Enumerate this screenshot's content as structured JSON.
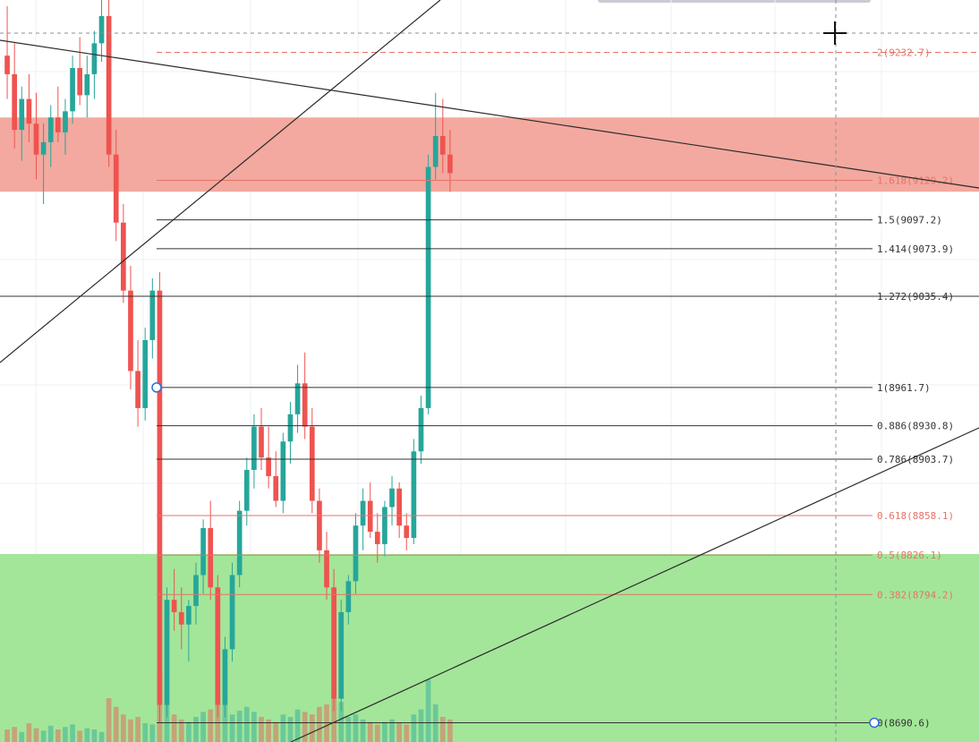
{
  "chart_data": {
    "type": "candlestick",
    "title": "",
    "xlabel": "",
    "ylabel": "",
    "ylim": [
      8675,
      9275
    ],
    "colors": {
      "up": "#26a69a",
      "down": "#ef5350",
      "fib_red": "#e57368",
      "fib_black": "#333333",
      "resistance_zone": "#f2a49a",
      "support_zone": "#9ee594",
      "grid": "#eef0f3",
      "trendline": "#2b2b2b",
      "anchor": "#2f6fd8"
    },
    "zones": [
      {
        "name": "resistance-zone",
        "from": 9120,
        "to": 9180
      },
      {
        "name": "support-zone",
        "from": 8675,
        "to": 8827
      }
    ],
    "fib_levels": [
      {
        "ratio": "2",
        "price": 9232.7,
        "label": "2(9232.7)",
        "color": "red",
        "dashed": true
      },
      {
        "ratio": "1.618",
        "price": 9129.2,
        "label": "1.618(9129.2)",
        "color": "red",
        "dashed": false
      },
      {
        "ratio": "1.5",
        "price": 9097.2,
        "label": "1.5(9097.2)",
        "color": "black",
        "dashed": false
      },
      {
        "ratio": "1.414",
        "price": 9073.9,
        "label": "1.414(9073.9)",
        "color": "black",
        "dashed": false
      },
      {
        "ratio": "1.272",
        "price": 9035.4,
        "label": "1.272(9035.4)",
        "color": "black",
        "dashed": false
      },
      {
        "ratio": "1",
        "price": 8961.7,
        "label": "1(8961.7)",
        "color": "black",
        "dashed": false
      },
      {
        "ratio": "0.886",
        "price": 8930.8,
        "label": "0.886(8930.8)",
        "color": "black",
        "dashed": false
      },
      {
        "ratio": "0.786",
        "price": 8903.7,
        "label": "0.786(8903.7)",
        "color": "black",
        "dashed": false
      },
      {
        "ratio": "0.618",
        "price": 8858.1,
        "label": "0.618(8858.1)",
        "color": "red",
        "dashed": false
      },
      {
        "ratio": "0.5",
        "price": 8826.1,
        "label": "0.5(8826.1)",
        "color": "red",
        "dashed": false
      },
      {
        "ratio": "0.382",
        "price": 8794.2,
        "label": "0.382(8794.2)",
        "color": "red",
        "dashed": false
      },
      {
        "ratio": "0",
        "price": 8690.6,
        "label": "0(8690.6)",
        "color": "black",
        "dashed": false
      }
    ],
    "candles": [
      [
        9230,
        9270,
        9195,
        9215
      ],
      [
        9215,
        9240,
        9155,
        9170
      ],
      [
        9170,
        9205,
        9145,
        9195
      ],
      [
        9195,
        9215,
        9160,
        9175
      ],
      [
        9175,
        9200,
        9130,
        9150
      ],
      [
        9150,
        9175,
        9110,
        9160
      ],
      [
        9160,
        9190,
        9140,
        9180
      ],
      [
        9180,
        9205,
        9160,
        9168
      ],
      [
        9168,
        9195,
        9150,
        9185
      ],
      [
        9185,
        9230,
        9175,
        9220
      ],
      [
        9220,
        9245,
        9190,
        9198
      ],
      [
        9198,
        9230,
        9180,
        9215
      ],
      [
        9215,
        9250,
        9195,
        9240
      ],
      [
        9240,
        9275,
        9225,
        9262
      ],
      [
        9262,
        9275,
        9140,
        9150
      ],
      [
        9150,
        9170,
        9080,
        9095
      ],
      [
        9095,
        9110,
        9030,
        9040
      ],
      [
        9040,
        9060,
        8960,
        8975
      ],
      [
        8975,
        9000,
        8930,
        8945
      ],
      [
        8945,
        9010,
        8935,
        9000
      ],
      [
        9000,
        9050,
        8985,
        9040
      ],
      [
        9040,
        9055,
        8690,
        8705
      ],
      [
        8705,
        8800,
        8695,
        8790
      ],
      [
        8790,
        8815,
        8765,
        8780
      ],
      [
        8780,
        8800,
        8750,
        8770
      ],
      [
        8770,
        8790,
        8740,
        8785
      ],
      [
        8785,
        8820,
        8770,
        8810
      ],
      [
        8810,
        8855,
        8795,
        8848
      ],
      [
        8848,
        8870,
        8790,
        8800
      ],
      [
        8800,
        8810,
        8695,
        8705
      ],
      [
        8705,
        8760,
        8695,
        8750
      ],
      [
        8750,
        8820,
        8740,
        8810
      ],
      [
        8810,
        8870,
        8800,
        8862
      ],
      [
        8862,
        8905,
        8850,
        8895
      ],
      [
        8895,
        8940,
        8880,
        8930
      ],
      [
        8930,
        8945,
        8895,
        8905
      ],
      [
        8905,
        8930,
        8880,
        8890
      ],
      [
        8890,
        8910,
        8865,
        8870
      ],
      [
        8870,
        8925,
        8860,
        8918
      ],
      [
        8918,
        8950,
        8900,
        8940
      ],
      [
        8940,
        8980,
        8925,
        8965
      ],
      [
        8965,
        8990,
        8920,
        8930
      ],
      [
        8930,
        8945,
        8860,
        8870
      ],
      [
        8870,
        8880,
        8820,
        8830
      ],
      [
        8830,
        8845,
        8790,
        8800
      ],
      [
        8800,
        8815,
        8700,
        8710
      ],
      [
        8710,
        8790,
        8700,
        8780
      ],
      [
        8780,
        8810,
        8770,
        8805
      ],
      [
        8805,
        8860,
        8795,
        8850
      ],
      [
        8850,
        8880,
        8830,
        8870
      ],
      [
        8870,
        8885,
        8840,
        8845
      ],
      [
        8845,
        8860,
        8820,
        8835
      ],
      [
        8835,
        8870,
        8825,
        8865
      ],
      [
        8865,
        8890,
        8850,
        8880
      ],
      [
        8880,
        8885,
        8840,
        8850
      ],
      [
        8850,
        8860,
        8830,
        8840
      ],
      [
        8840,
        8920,
        8835,
        8910
      ],
      [
        8910,
        8955,
        8900,
        8945
      ],
      [
        8945,
        9150,
        8940,
        9140
      ],
      [
        9140,
        9200,
        9130,
        9165
      ],
      [
        9165,
        9195,
        9135,
        9150
      ],
      [
        9150,
        9170,
        9120,
        9135
      ]
    ],
    "volumes": [
      0.1,
      0.12,
      0.08,
      0.15,
      0.11,
      0.09,
      0.13,
      0.1,
      0.12,
      0.14,
      0.09,
      0.11,
      0.1,
      0.08,
      0.35,
      0.28,
      0.22,
      0.18,
      0.2,
      0.15,
      0.14,
      0.55,
      0.3,
      0.22,
      0.18,
      0.16,
      0.2,
      0.24,
      0.26,
      0.4,
      0.3,
      0.22,
      0.25,
      0.28,
      0.24,
      0.2,
      0.18,
      0.16,
      0.22,
      0.2,
      0.26,
      0.24,
      0.22,
      0.28,
      0.3,
      0.45,
      0.32,
      0.2,
      0.22,
      0.18,
      0.16,
      0.14,
      0.16,
      0.18,
      0.15,
      0.14,
      0.22,
      0.26,
      0.5,
      0.3,
      0.2,
      0.18
    ]
  }
}
